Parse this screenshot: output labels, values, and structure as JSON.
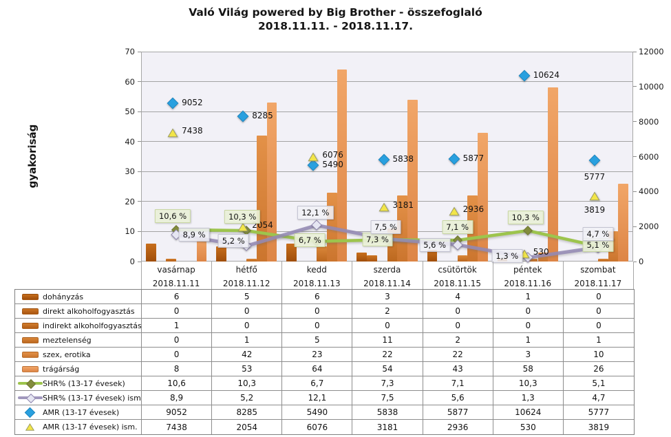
{
  "chart_data": {
    "type": "combo-bar-line-scatter",
    "title_line1": "Való Világ powered by Big Brother - összefoglaló",
    "title_line2": "2018.11.11. - 2018.11.17.",
    "y_axis_left": {
      "label": "gyakoriság",
      "min": 0,
      "max": 70,
      "ticks": [
        0,
        10,
        20,
        30,
        40,
        50,
        60,
        70
      ]
    },
    "y_axis_right": {
      "min": 0,
      "max": 12000,
      "ticks": [
        0,
        2000,
        4000,
        6000,
        8000,
        10000,
        12000
      ]
    },
    "categories": [
      "vasárnap",
      "hétfő",
      "kedd",
      "szerda",
      "csütörtök",
      "péntek",
      "szombat"
    ],
    "category_dates": [
      "2018.11.11",
      "2018.11.12",
      "2018.11.13",
      "2018.11.14",
      "2018.11.15",
      "2018.11.16",
      "2018.11.17"
    ],
    "grid": true,
    "bar_series": [
      {
        "name": "dohányzás",
        "values": [
          6,
          5,
          6,
          3,
          4,
          1,
          0
        ],
        "color_top": "#C76E1C",
        "color_bottom": "#A04E0B"
      },
      {
        "name": "direkt alkoholfogyasztás",
        "values": [
          0,
          0,
          0,
          2,
          0,
          0,
          0
        ],
        "color_top": "#CC7524",
        "color_bottom": "#AA5611"
      },
      {
        "name": "indirekt alkoholfogyasztás",
        "values": [
          1,
          0,
          0,
          0,
          0,
          0,
          0
        ],
        "color_top": "#D27D2C",
        "color_bottom": "#B25E17"
      },
      {
        "name": "meztelenség",
        "values": [
          0,
          1,
          5,
          11,
          2,
          1,
          1
        ],
        "color_top": "#DA873A",
        "color_bottom": "#BC681F"
      },
      {
        "name": "szex, erotika",
        "values": [
          0,
          42,
          23,
          22,
          22,
          3,
          10
        ],
        "color_top": "#E39148",
        "color_bottom": "#CB752E"
      },
      {
        "name": "trágárság",
        "values": [
          8,
          53,
          64,
          54,
          43,
          58,
          26
        ],
        "color_top": "#F1A668",
        "color_bottom": "#DD8546"
      }
    ],
    "line_series": [
      {
        "name": "SHR% (13-17 évesek)",
        "axis": "left",
        "values": [
          10.6,
          10.3,
          6.7,
          7.3,
          7.1,
          10.3,
          5.1
        ],
        "point_labels": [
          "10,6 %",
          "10,3 %",
          "6,7 %",
          "7,3 %",
          "7,1 %",
          "10,3 %",
          "5,1 %"
        ],
        "line_color": "#9DC44D",
        "marker_color": "#828C3C",
        "marker_border": "#6E7733",
        "label_bg": "rgba(233,240,215,0.92)",
        "label_border": "#C8D6A2"
      },
      {
        "name": "SHR% (13-17 évesek) ism.",
        "axis": "left",
        "values": [
          8.9,
          5.2,
          12.1,
          7.5,
          5.6,
          1.3,
          4.7
        ],
        "point_labels": [
          "8,9 %",
          "5,2 %",
          "12,1 %",
          "7,5 %",
          "5,6 %",
          "1,3 %",
          "4,7 %"
        ],
        "line_color": "rgba(148,138,180,0.88)",
        "marker_color": "#E6E6F2",
        "marker_border": "#8F86AE",
        "label_bg": "rgba(240,240,246,0.88)",
        "label_border": "#C2C2D0"
      }
    ],
    "scatter_series": [
      {
        "name": "AMR (13-17 évesek)",
        "axis": "right",
        "marker": "diamond",
        "values": [
          9052,
          8285,
          5490,
          5838,
          5877,
          10624,
          5777
        ],
        "point_labels": [
          "9052",
          "8285",
          "5490",
          "5838",
          "5877",
          "10624",
          "5777"
        ],
        "marker_color": "#29A0DF",
        "marker_border": "#1F86BF"
      },
      {
        "name": "AMR (13-17 évesek) ism.",
        "axis": "right",
        "marker": "triangle",
        "values": [
          7438,
          2054,
          6076,
          3181,
          2936,
          530,
          3819
        ],
        "point_labels": [
          "7438",
          "2054",
          "6076",
          "3181",
          "2936",
          "530",
          "3819"
        ],
        "marker_color": "#F2E549",
        "marker_border": "#9C9C60"
      }
    ]
  },
  "table": {
    "rows": [
      {
        "series_type": "bar",
        "series_index": 0,
        "label": "dohányzás",
        "values": [
          "6",
          "5",
          "6",
          "3",
          "4",
          "1",
          "0"
        ]
      },
      {
        "series_type": "bar",
        "series_index": 1,
        "label": "direkt alkoholfogyasztás",
        "values": [
          "0",
          "0",
          "0",
          "2",
          "0",
          "0",
          "0"
        ]
      },
      {
        "series_type": "bar",
        "series_index": 2,
        "label": "indirekt alkoholfogyasztás",
        "values": [
          "1",
          "0",
          "0",
          "0",
          "0",
          "0",
          "0"
        ]
      },
      {
        "series_type": "bar",
        "series_index": 3,
        "label": "meztelenség",
        "values": [
          "0",
          "1",
          "5",
          "11",
          "2",
          "1",
          "1"
        ]
      },
      {
        "series_type": "bar",
        "series_index": 4,
        "label": "szex, erotika",
        "values": [
          "0",
          "42",
          "23",
          "22",
          "22",
          "3",
          "10"
        ]
      },
      {
        "series_type": "bar",
        "series_index": 5,
        "label": "trágárság",
        "values": [
          "8",
          "53",
          "64",
          "54",
          "43",
          "58",
          "26"
        ]
      },
      {
        "series_type": "line",
        "series_index": 0,
        "label": "SHR% (13-17 évesek)",
        "values": [
          "10,6",
          "10,3",
          "6,7",
          "7,3",
          "7,1",
          "10,3",
          "5,1"
        ]
      },
      {
        "series_type": "line",
        "series_index": 1,
        "label": "SHR% (13-17 évesek) ism.",
        "values": [
          "8,9",
          "5,2",
          "12,1",
          "7,5",
          "5,6",
          "1,3",
          "4,7"
        ]
      },
      {
        "series_type": "scatter",
        "series_index": 0,
        "label": "AMR (13-17 évesek)",
        "values": [
          "9052",
          "8285",
          "5490",
          "5838",
          "5877",
          "10624",
          "5777"
        ]
      },
      {
        "series_type": "scatter",
        "series_index": 1,
        "label": "AMR (13-17 évesek) ism.",
        "values": [
          "7438",
          "2054",
          "6076",
          "3181",
          "2936",
          "530",
          "3819"
        ]
      }
    ]
  }
}
